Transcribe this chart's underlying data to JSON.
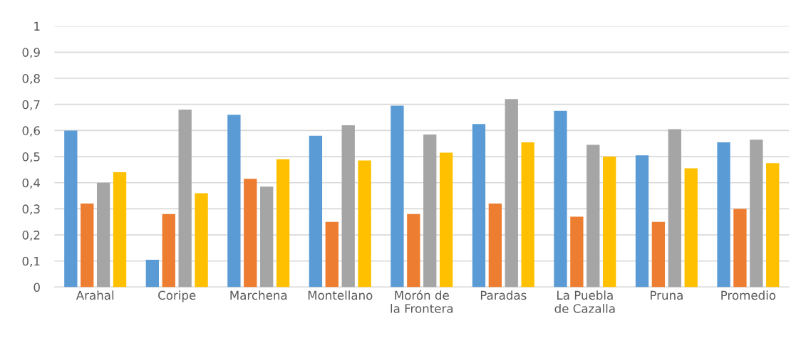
{
  "chart_data": {
    "type": "bar",
    "categories": [
      "Arahal",
      "Coripe",
      "Marchena",
      "Montellano",
      "Morón de\nla Frontera",
      "Paradas",
      "La Puebla\nde Cazalla",
      "Pruna",
      "Promedio"
    ],
    "series": [
      {
        "color": "#5b9bd5",
        "values": [
          0.6,
          0.105,
          0.66,
          0.58,
          0.695,
          0.625,
          0.675,
          0.505,
          0.555
        ]
      },
      {
        "color": "#ed7d31",
        "values": [
          0.32,
          0.28,
          0.415,
          0.25,
          0.28,
          0.32,
          0.27,
          0.25,
          0.3
        ]
      },
      {
        "color": "#a5a5a5",
        "values": [
          0.4,
          0.68,
          0.385,
          0.62,
          0.585,
          0.72,
          0.545,
          0.605,
          0.565
        ]
      },
      {
        "color": "#ffc000",
        "values": [
          0.44,
          0.36,
          0.49,
          0.485,
          0.515,
          0.555,
          0.5,
          0.455,
          0.475
        ]
      }
    ],
    "ylim": [
      0,
      1
    ],
    "yticks": [
      0,
      {
        "value": 0.1,
        "label": "0,1"
      },
      {
        "value": 0.2,
        "label": "0,2"
      },
      {
        "value": 0.3,
        "label": "0,3"
      },
      {
        "value": 0.4,
        "label": "0,4"
      },
      {
        "value": 0.5,
        "label": "0,5"
      },
      {
        "value": 0.6,
        "label": "0,6"
      },
      {
        "value": 0.7,
        "label": "0,7"
      },
      {
        "value": 0.8,
        "label": "0,8"
      },
      {
        "value": 0.9,
        "label": "0,9"
      },
      1
    ],
    "grid": "y",
    "legend": false
  }
}
